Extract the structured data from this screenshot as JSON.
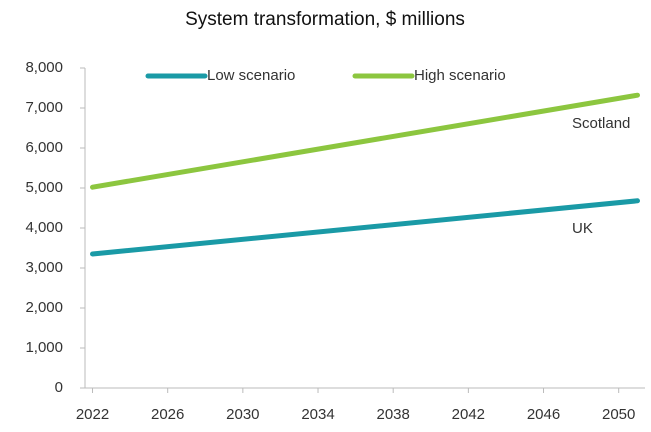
{
  "chart_data": {
    "type": "line",
    "title": "System transformation, $ millions",
    "x": [
      2022,
      2051
    ],
    "series": [
      {
        "name": "Low scenario",
        "color": "#1a9aa6",
        "values": [
          3350,
          4680
        ]
      },
      {
        "name": "High scenario",
        "color": "#8cc63f",
        "values": [
          5020,
          7320
        ]
      }
    ],
    "xlim": [
      2021.6,
      2051.4
    ],
    "xticks": [
      2022,
      2026,
      2030,
      2034,
      2038,
      2042,
      2046,
      2050
    ],
    "ylim": [
      0,
      8000
    ],
    "yticks": [
      0,
      {
        "value": 1000,
        "label": "1,000"
      },
      {
        "value": 2000,
        "label": "2,000"
      },
      {
        "value": 3000,
        "label": "3,000"
      },
      {
        "value": 4000,
        "label": "4,000"
      },
      {
        "value": 5000,
        "label": "5,000"
      },
      {
        "value": 6000,
        "label": "6,000"
      },
      {
        "value": 7000,
        "label": "7,000"
      },
      {
        "value": 8000,
        "label": "8,000"
      }
    ],
    "grid": false,
    "legend": "top",
    "annotations": [
      "Scotland",
      "UK"
    ]
  }
}
